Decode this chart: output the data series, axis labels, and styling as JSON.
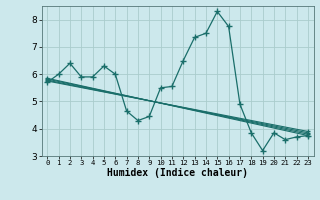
{
  "xlabel": "Humidex (Indice chaleur)",
  "bg_color": "#cce8ec",
  "grid_color": "#aacccc",
  "line_color": "#1a6e6a",
  "xlim": [
    -0.5,
    23.5
  ],
  "ylim": [
    3,
    8.5
  ],
  "yticks": [
    3,
    4,
    5,
    6,
    7,
    8
  ],
  "xticks": [
    0,
    1,
    2,
    3,
    4,
    5,
    6,
    7,
    8,
    9,
    10,
    11,
    12,
    13,
    14,
    15,
    16,
    17,
    18,
    19,
    20,
    21,
    22,
    23
  ],
  "main_line_x": [
    0,
    1,
    2,
    3,
    4,
    5,
    6,
    7,
    8,
    9,
    10,
    11,
    12,
    13,
    14,
    15,
    16,
    17,
    18,
    19,
    20,
    21,
    22,
    23
  ],
  "main_line_y": [
    5.7,
    6.0,
    6.4,
    5.9,
    5.9,
    6.3,
    6.0,
    4.65,
    4.3,
    4.45,
    5.5,
    5.55,
    6.5,
    7.35,
    7.5,
    8.3,
    7.75,
    4.9,
    3.85,
    3.2,
    3.85,
    3.6,
    3.7,
    3.75
  ],
  "reg_lines": [
    {
      "x0": 0,
      "y0": 5.85,
      "x1": 23,
      "y1": 3.75
    },
    {
      "x0": 0,
      "y0": 5.82,
      "x1": 23,
      "y1": 3.8
    },
    {
      "x0": 0,
      "y0": 5.78,
      "x1": 23,
      "y1": 3.85
    },
    {
      "x0": 0,
      "y0": 5.75,
      "x1": 23,
      "y1": 3.9
    }
  ]
}
